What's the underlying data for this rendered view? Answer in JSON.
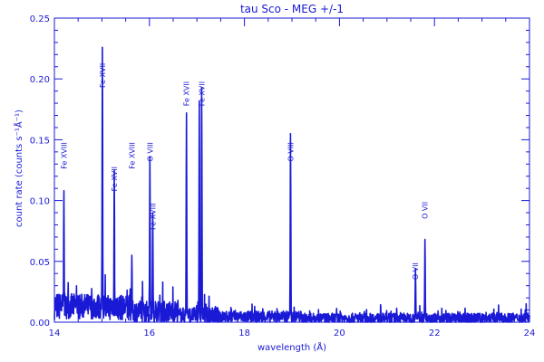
{
  "chart_data": {
    "type": "line",
    "title": "tau Sco - MEG +/-1",
    "xlabel": "wavelength (Å)",
    "ylabel": "count rate (counts s⁻¹Å⁻¹)",
    "xlim": [
      14,
      24
    ],
    "ylim": [
      0,
      0.25
    ],
    "x_ticks": [
      14,
      16,
      18,
      20,
      22,
      24
    ],
    "x_tick_labels": [
      "14",
      "16",
      "18",
      "20",
      "22",
      "24"
    ],
    "y_ticks": [
      0.0,
      0.05,
      0.1,
      0.15,
      0.2,
      0.25
    ],
    "y_tick_labels": [
      "0.00",
      "0.05",
      "0.10",
      "0.15",
      "0.20",
      "0.25"
    ],
    "minor_x_step": 0.5,
    "minor_y_step": 0.01,
    "grid": false,
    "color": "#1a1ad6",
    "continuum": [
      {
        "range": [
          14.0,
          14.2
        ],
        "level": 0.012,
        "noise": 0.014
      },
      {
        "range": [
          14.2,
          15.0
        ],
        "level": 0.012,
        "noise": 0.013
      },
      {
        "range": [
          15.0,
          15.6
        ],
        "level": 0.011,
        "noise": 0.013
      },
      {
        "range": [
          15.6,
          16.6
        ],
        "level": 0.008,
        "noise": 0.011
      },
      {
        "range": [
          16.6,
          17.5
        ],
        "level": 0.005,
        "noise": 0.008
      },
      {
        "range": [
          17.5,
          19.2
        ],
        "level": 0.004,
        "noise": 0.006
      },
      {
        "range": [
          19.2,
          24.0
        ],
        "level": 0.003,
        "noise": 0.005
      }
    ],
    "lines": [
      {
        "label": "Fe XVIII",
        "x": 14.2,
        "y": 0.108,
        "label_y": 0.148
      },
      {
        "label": "Fe XVII",
        "x": 15.01,
        "y": 0.226,
        "label_y": 0.213
      },
      {
        "label": "Fe XVII",
        "x": 15.26,
        "y": 0.125,
        "label_y": 0.128
      },
      {
        "label": "Fe XVIII",
        "x": 15.63,
        "y": 0.055,
        "label_y": 0.148
      },
      {
        "label": "O VIII",
        "x": 16.01,
        "y": 0.136,
        "label_y": 0.148
      },
      {
        "label": "Fe XVIII",
        "x": 16.07,
        "y": 0.09,
        "label_y": 0.098
      },
      {
        "label": "Fe XVII",
        "x": 16.78,
        "y": 0.172,
        "label_y": 0.198
      },
      {
        "label": "Fe XVII",
        "x": 17.05,
        "y": 0.182,
        "label_y": 0.198
      },
      {
        "label": "Fe XVII",
        "x": 17.1,
        "y": 0.193,
        "label_y": 0.198
      },
      {
        "label": "O VIII",
        "x": 18.97,
        "y": 0.155,
        "label_y": 0.148
      },
      {
        "label": "O VII",
        "x": 21.6,
        "y": 0.044,
        "label_y": 0.049
      },
      {
        "label": "O VII",
        "x": 21.8,
        "y": 0.068,
        "label_y": 0.099
      }
    ],
    "labeled_lines": [
      0,
      1,
      2,
      3,
      4,
      5,
      6,
      8,
      9,
      10,
      11
    ]
  }
}
